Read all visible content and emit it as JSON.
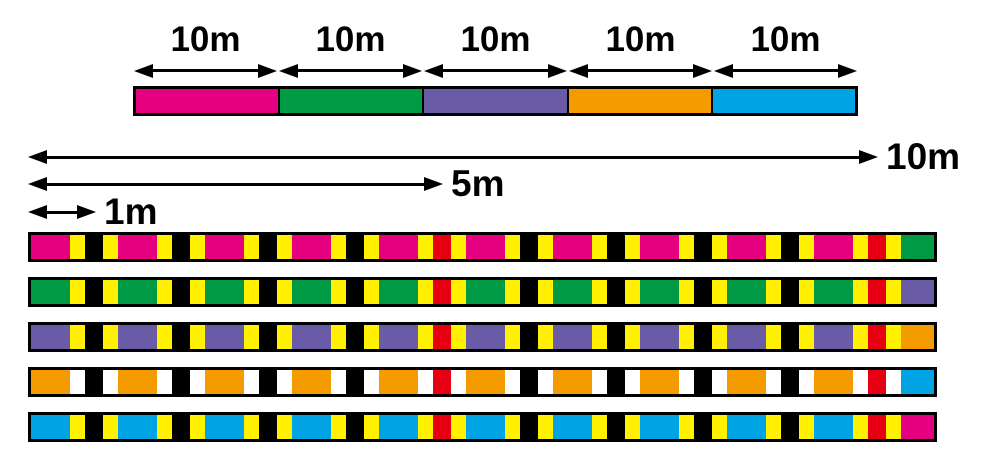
{
  "colors": {
    "magenta": "#E4007F",
    "green": "#009944",
    "purple": "#6A5BA6",
    "orange": "#F49B00",
    "blue": "#00A4E4",
    "yellow": "#FFF100",
    "white": "#FFFFFF",
    "red": "#E60012",
    "black": "#000000"
  },
  "top_scale": {
    "segments": [
      {
        "name": "magenta",
        "label": "10m"
      },
      {
        "name": "green",
        "label": "10m"
      },
      {
        "name": "purple",
        "label": "10m"
      },
      {
        "name": "orange",
        "label": "10m"
      },
      {
        "name": "blue",
        "label": "10m"
      }
    ]
  },
  "rulers": [
    {
      "name": "ruler-10m",
      "label": "10m",
      "meters": 10
    },
    {
      "name": "ruler-5m",
      "label": "5m",
      "meters": 5
    },
    {
      "name": "ruler-1m",
      "label": "1m",
      "meters": 1
    }
  ],
  "line_bars": [
    {
      "name": "magenta-section",
      "base": "magenta",
      "stripe": "yellow",
      "next": "green"
    },
    {
      "name": "green-section",
      "base": "green",
      "stripe": "yellow",
      "next": "purple"
    },
    {
      "name": "purple-section",
      "base": "purple",
      "stripe": "yellow",
      "next": "orange"
    },
    {
      "name": "orange-section",
      "base": "orange",
      "stripe": "white",
      "next": "blue"
    },
    {
      "name": "blue-section",
      "base": "blue",
      "stripe": "yellow",
      "next": "magenta"
    }
  ],
  "tick_pattern": {
    "description": "tick mark every 1m; ticks at 5m and 10m have a red center; base color changes to next color at the 10m tick",
    "ticks": [
      {
        "meter": 1,
        "center": "black"
      },
      {
        "meter": 2,
        "center": "black"
      },
      {
        "meter": 3,
        "center": "black"
      },
      {
        "meter": 4,
        "center": "black"
      },
      {
        "meter": 5,
        "center": "red"
      },
      {
        "meter": 6,
        "center": "black"
      },
      {
        "meter": 7,
        "center": "black"
      },
      {
        "meter": 8,
        "center": "black"
      },
      {
        "meter": 9,
        "center": "black"
      },
      {
        "meter": 10,
        "center": "red"
      }
    ]
  }
}
